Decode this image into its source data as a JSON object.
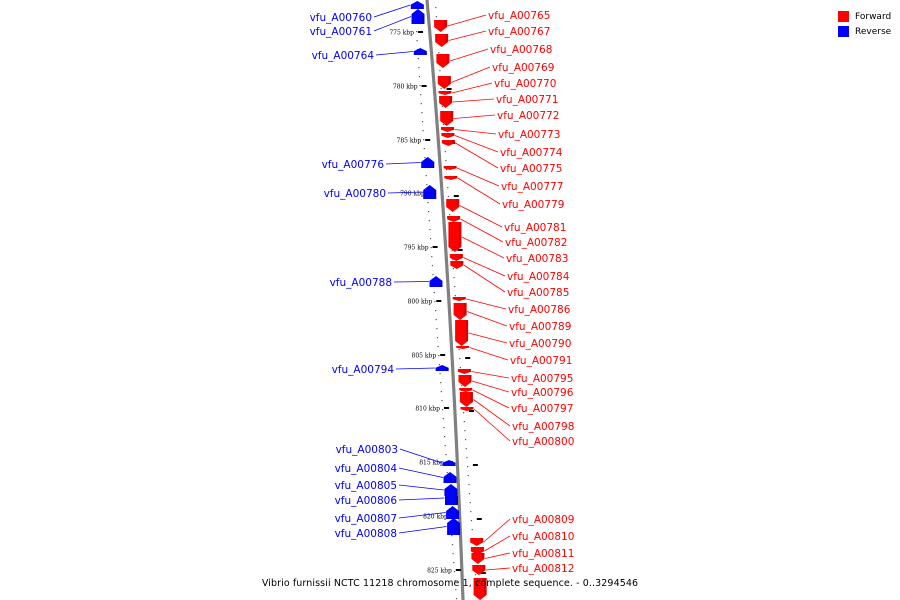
{
  "legend": {
    "forward_label": "Forward",
    "reverse_label": "Reverse",
    "forward_color": "#ff0000",
    "reverse_color": "#0000ff"
  },
  "caption": "Vibrio furnissii NCTC 11218 chromosome 1, complete sequence. - 0..3294546",
  "ticks": [
    {
      "label": "775 kbp"
    },
    {
      "label": "780 kbp"
    },
    {
      "label": "785 kbp"
    },
    {
      "label": "790 kbp"
    },
    {
      "label": "795 kbp"
    },
    {
      "label": "800 kbp"
    },
    {
      "label": "805 kbp"
    },
    {
      "label": "810 kbp"
    },
    {
      "label": "815 kbp"
    },
    {
      "label": "820 kbp"
    },
    {
      "label": "825 kbp"
    }
  ],
  "reverse_genes": [
    {
      "label": "vfu_A00760"
    },
    {
      "label": "vfu_A00761"
    },
    {
      "label": "vfu_A00764"
    },
    {
      "label": "vfu_A00776"
    },
    {
      "label": "vfu_A00780"
    },
    {
      "label": "vfu_A00788"
    },
    {
      "label": "vfu_A00794"
    },
    {
      "label": "vfu_A00803"
    },
    {
      "label": "vfu_A00804"
    },
    {
      "label": "vfu_A00805"
    },
    {
      "label": "vfu_A00806"
    },
    {
      "label": "vfu_A00807"
    },
    {
      "label": "vfu_A00808"
    }
  ],
  "forward_genes": [
    {
      "label": "vfu_A00765"
    },
    {
      "label": "vfu_A00767"
    },
    {
      "label": "vfu_A00768"
    },
    {
      "label": "vfu_A00769"
    },
    {
      "label": "vfu_A00770"
    },
    {
      "label": "vfu_A00771"
    },
    {
      "label": "vfu_A00772"
    },
    {
      "label": "vfu_A00773"
    },
    {
      "label": "vfu_A00774"
    },
    {
      "label": "vfu_A00775"
    },
    {
      "label": "vfu_A00777"
    },
    {
      "label": "vfu_A00779"
    },
    {
      "label": "vfu_A00781"
    },
    {
      "label": "vfu_A00782"
    },
    {
      "label": "vfu_A00783"
    },
    {
      "label": "vfu_A00784"
    },
    {
      "label": "vfu_A00785"
    },
    {
      "label": "vfu_A00786"
    },
    {
      "label": "vfu_A00789"
    },
    {
      "label": "vfu_A00790"
    },
    {
      "label": "vfu_A00791"
    },
    {
      "label": "vfu_A00795"
    },
    {
      "label": "vfu_A00796"
    },
    {
      "label": "vfu_A00797"
    },
    {
      "label": "vfu_A00798"
    },
    {
      "label": "vfu_A00800"
    },
    {
      "label": "vfu_A00809"
    },
    {
      "label": "vfu_A00810"
    },
    {
      "label": "vfu_A00811"
    },
    {
      "label": "vfu_A00812"
    }
  ]
}
